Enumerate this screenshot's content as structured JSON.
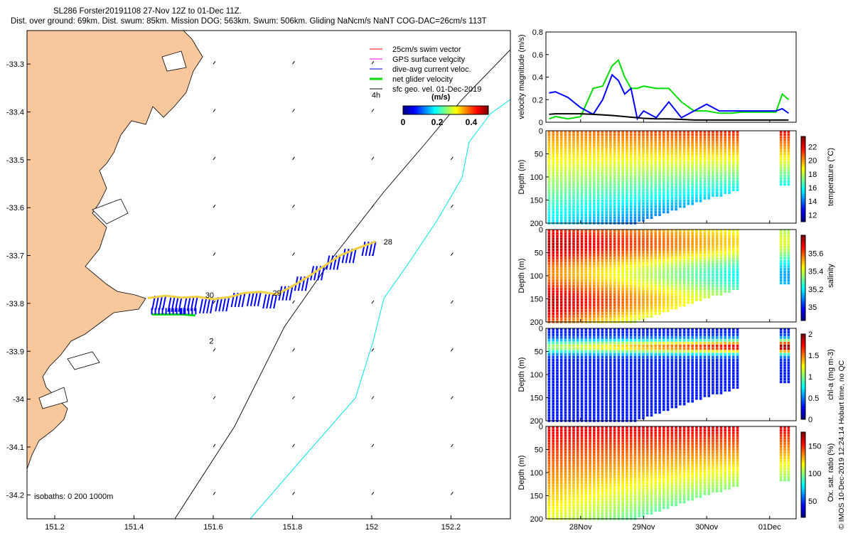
{
  "title": {
    "line1": "SL286 Forster20191108 27-Nov 12Z to 01-Dec 11Z.",
    "line2": "Dist. over ground: 69km. Dist. swum: 85km. Mission DOG: 563km. Swum: 506km. Gliding NaNcm/s NaNT COG-DAC=26cm/s 113T"
  },
  "side_note": "© IMOS 10-Dec-2019 12:24:14 Hobart time, no QC",
  "colors": {
    "land": "#f9c79c",
    "isobath_200": "#000000",
    "isobath_1000": "#00e5ee",
    "swim": "#ff0000",
    "gps": "#ff00ff",
    "dac": "#0000ff",
    "net": "#00dd00",
    "sfc": "#000000"
  },
  "chart_data": [
    {
      "type": "map",
      "x_ticks": [
        "151.2",
        "151.4",
        "151.6",
        "151.8",
        "152",
        "152.2"
      ],
      "x_tick_values": [
        151.2,
        151.4,
        151.6,
        151.8,
        152.0,
        152.2
      ],
      "y_ticks": [
        "-33.3",
        "-33.4",
        "-33.5",
        "-33.6",
        "-33.7",
        "-33.8",
        "-33.9",
        "-34",
        "-34.1",
        "-34.2"
      ],
      "y_tick_values": [
        -33.3,
        -33.4,
        -33.5,
        -33.6,
        -33.7,
        -33.8,
        -33.9,
        -34.0,
        -34.1,
        -34.2
      ],
      "xlim": [
        151.13,
        152.35
      ],
      "ylim": [
        -34.25,
        -33.23
      ],
      "legend": [
        {
          "label": "25cm/s swim vector",
          "color": "#ff0000"
        },
        {
          "label": "GPS surface velocity",
          "color": "#ff00ff"
        },
        {
          "label": "dive-avg current veloc.",
          "color": "#0000ff"
        },
        {
          "label": "net glider velocity",
          "color": "#00dd00"
        },
        {
          "label": "sfc geo. vel. 01-Dec-2019",
          "color": "#000000"
        }
      ],
      "legend_placement": "top-right",
      "colorbar": {
        "label": "(m/s)",
        "ticks": [
          "0",
          "0.2",
          "0.4"
        ],
        "range": [
          0,
          0.5
        ]
      },
      "annotations": [
        {
          "text": "4h",
          "lon": 152.0,
          "lat": -33.37
        },
        {
          "text": "28",
          "lon": 152.03,
          "lat": -33.677
        },
        {
          "text": "30",
          "lon": 151.58,
          "lat": -33.788
        },
        {
          "text": "29",
          "lon": 151.75,
          "lat": -33.784
        },
        {
          "text": "2",
          "lon": 151.59,
          "lat": -33.884
        }
      ],
      "isobath_note": "isobaths: 0   200  1000m",
      "track": [
        [
          151.435,
          -33.789
        ],
        [
          151.48,
          -33.784
        ],
        [
          151.52,
          -33.788
        ],
        [
          151.56,
          -33.786
        ],
        [
          151.6,
          -33.791
        ],
        [
          151.64,
          -33.787
        ],
        [
          151.68,
          -33.778
        ],
        [
          151.72,
          -33.776
        ],
        [
          151.76,
          -33.781
        ],
        [
          151.8,
          -33.764
        ],
        [
          151.84,
          -33.744
        ],
        [
          151.88,
          -33.722
        ],
        [
          151.92,
          -33.7
        ],
        [
          151.96,
          -33.686
        ],
        [
          152.01,
          -33.671
        ]
      ],
      "return_track": [
        [
          151.445,
          -33.823
        ],
        [
          151.49,
          -33.823
        ],
        [
          151.52,
          -33.823
        ],
        [
          151.555,
          -33.825
        ]
      ]
    },
    {
      "type": "line",
      "xlim_days": [
        "27-Nov",
        "01-Dec"
      ],
      "x_ticks": [
        "28Nov",
        "29Nov",
        "30Nov",
        "01Dec"
      ],
      "ylabel": "velocity magnitude (m/s)",
      "y_ticks": [
        "0",
        "0.2",
        "0.4",
        "0.6",
        "0.8"
      ],
      "ylim": [
        0,
        0.8
      ],
      "x_days": [
        27.5,
        27.6,
        27.8,
        28.0,
        28.2,
        28.35,
        28.5,
        28.6,
        28.7,
        28.8,
        28.9,
        29.0,
        29.2,
        29.4,
        29.6,
        29.8,
        30.0,
        30.2,
        30.4,
        30.55,
        30.7,
        30.9,
        31.1,
        31.2,
        31.3
      ],
      "series": [
        {
          "name": "",
          "color": "#00dd00",
          "values": [
            0.03,
            0.05,
            0.03,
            0.05,
            0.3,
            0.32,
            0.5,
            0.55,
            0.4,
            0.3,
            0.3,
            0.32,
            0.3,
            0.3,
            0.18,
            0.1,
            0.1,
            0.08,
            0.08,
            0.09,
            0.09,
            0.09,
            0.09,
            0.25,
            0.2
          ]
        },
        {
          "name": "",
          "color": "#0000ff",
          "values": [
            0.26,
            0.27,
            0.22,
            0.13,
            0.07,
            0.2,
            0.42,
            0.37,
            0.25,
            0.3,
            0.03,
            0.1,
            0.04,
            0.18,
            0.04,
            0.1,
            0.16,
            0.1,
            0.1,
            0.1,
            0.1,
            0.1,
            0.1,
            0.12,
            0.08
          ]
        },
        {
          "name": "",
          "color": "#000000",
          "values": [
            0.07,
            0.075,
            0.075,
            0.075,
            0.07,
            0.065,
            0.06,
            0.055,
            0.05,
            0.045,
            0.04,
            0.035,
            0.03,
            0.03,
            0.025,
            0.02,
            0.02,
            0.02,
            0.02,
            0.02,
            0.02,
            0.02,
            0.02,
            0.02,
            0.02
          ]
        }
      ]
    },
    {
      "type": "scatter",
      "ylabel": "Depth (m)",
      "y_ticks": [
        "0",
        "50",
        "100",
        "150",
        "200"
      ],
      "ylim": [
        200,
        0
      ],
      "colorbar_label": "temperature (°C)",
      "colorbar_ticks": [
        "12",
        "14",
        "16",
        "18",
        "20",
        "22"
      ],
      "color_range": [
        11,
        23.5
      ]
    },
    {
      "type": "scatter",
      "ylabel": "Depth (m)",
      "y_ticks": [
        "0",
        "50",
        "100",
        "150",
        "200"
      ],
      "ylim": [
        200,
        0
      ],
      "colorbar_label": "salinity",
      "colorbar_ticks": [
        "35",
        "35.2",
        "35.4",
        "35.6"
      ],
      "color_range": [
        34.85,
        35.8
      ]
    },
    {
      "type": "scatter",
      "ylabel": "Depth (m)",
      "y_ticks": [
        "0",
        "50",
        "100",
        "150",
        "200"
      ],
      "ylim": [
        200,
        0
      ],
      "colorbar_label": "chl-a (mg m-3)",
      "colorbar_ticks": [
        "0",
        "0.5",
        "1",
        "1.5",
        "2"
      ],
      "color_range": [
        0,
        2
      ]
    },
    {
      "type": "scatter",
      "ylabel": "Depth (m)",
      "y_ticks": [
        "0",
        "50",
        "100",
        "150",
        "200"
      ],
      "ylim": [
        200,
        0
      ],
      "colorbar_label": "Ox. sat. ratio (%)",
      "colorbar_ticks": [
        "50",
        "100",
        "150"
      ],
      "color_range": [
        20,
        175
      ]
    }
  ]
}
